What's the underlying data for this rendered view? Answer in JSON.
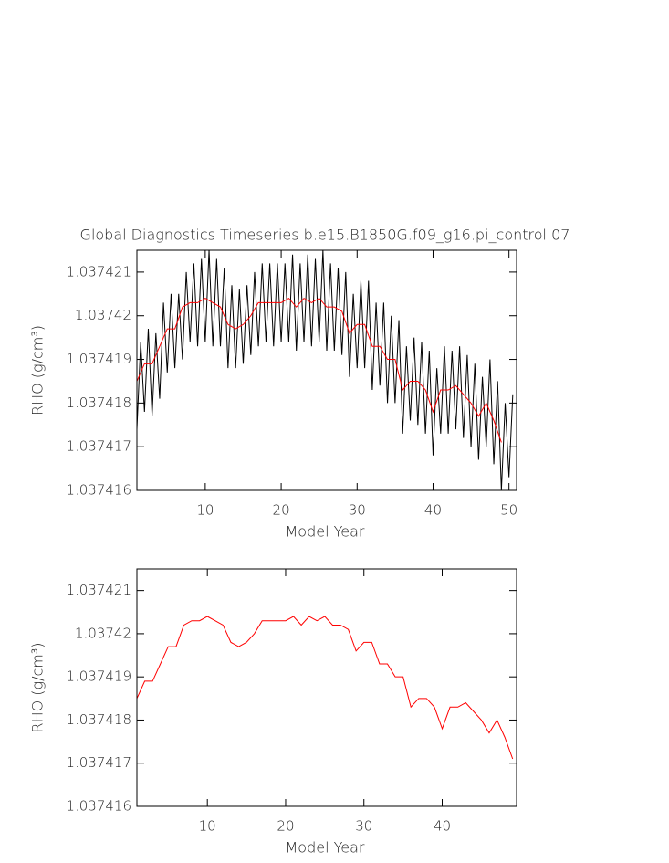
{
  "chart_data": [
    {
      "type": "line",
      "title": "Global Diagnostics Timeseries b.e15.B1850G.f09_g16.pi_control.07",
      "xlabel": "Model Year",
      "ylabel": "RHO (g/cm³)",
      "xlim": [
        1,
        51
      ],
      "xticks": [
        10,
        20,
        30,
        40,
        50
      ],
      "ylim": [
        1.037416,
        1.0374215
      ],
      "yticks": [
        1.037416,
        1.037417,
        1.037418,
        1.037419,
        1.03742,
        1.037421
      ],
      "series": [
        {
          "color": "#000000",
          "x": [
            1,
            1.5,
            2,
            2.5,
            3,
            3.5,
            4,
            4.5,
            5,
            5.5,
            6,
            6.5,
            7,
            7.5,
            8,
            8.5,
            9,
            9.5,
            10,
            10.5,
            11,
            11.5,
            12,
            12.5,
            13,
            13.5,
            14,
            14.5,
            15,
            15.5,
            16,
            16.5,
            17,
            17.5,
            18,
            18.5,
            19,
            19.5,
            20,
            20.5,
            21,
            21.5,
            22,
            22.5,
            23,
            23.5,
            24,
            24.5,
            25,
            25.5,
            26,
            26.5,
            27,
            27.5,
            28,
            28.5,
            29,
            29.5,
            30,
            30.5,
            31,
            31.5,
            32,
            32.5,
            33,
            33.5,
            34,
            34.5,
            35,
            35.5,
            36,
            36.5,
            37,
            37.5,
            38,
            38.5,
            39,
            39.5,
            40,
            40.5,
            41,
            41.5,
            42,
            42.5,
            43,
            43.5,
            44,
            44.5,
            45,
            45.5,
            46,
            46.5,
            47,
            47.5,
            48,
            48.5,
            49,
            49.5,
            50,
            50.5
          ],
          "values": [
            1.0374174,
            1.0374194,
            1.0374178,
            1.0374197,
            1.0374177,
            1.0374196,
            1.0374181,
            1.0374203,
            1.0374187,
            1.0374205,
            1.0374188,
            1.0374205,
            1.037419,
            1.037421,
            1.0374194,
            1.0374212,
            1.0374193,
            1.0374213,
            1.0374194,
            1.0374215,
            1.0374193,
            1.0374213,
            1.0374193,
            1.0374211,
            1.0374188,
            1.0374207,
            1.0374188,
            1.0374206,
            1.0374189,
            1.0374207,
            1.0374191,
            1.037421,
            1.0374193,
            1.0374212,
            1.0374194,
            1.0374212,
            1.0374193,
            1.0374212,
            1.0374194,
            1.0374212,
            1.0374194,
            1.0374214,
            1.0374192,
            1.0374212,
            1.0374194,
            1.0374214,
            1.0374193,
            1.0374213,
            1.0374194,
            1.0374215,
            1.0374192,
            1.0374212,
            1.0374192,
            1.0374211,
            1.0374191,
            1.037421,
            1.0374186,
            1.0374205,
            1.0374188,
            1.0374208,
            1.0374188,
            1.0374208,
            1.0374183,
            1.0374203,
            1.0374184,
            1.0374203,
            1.037418,
            1.03742,
            1.037418,
            1.0374199,
            1.0374173,
            1.0374193,
            1.0374176,
            1.0374195,
            1.0374175,
            1.0374194,
            1.0374173,
            1.0374192,
            1.0374168,
            1.0374188,
            1.0374173,
            1.0374193,
            1.0374173,
            1.0374192,
            1.0374174,
            1.0374193,
            1.0374172,
            1.0374191,
            1.037417,
            1.0374189,
            1.0374167,
            1.0374186,
            1.037417,
            1.037419,
            1.0374166,
            1.0374185,
            1.037416,
            1.037418,
            1.0374163,
            1.0374182
          ]
        },
        {
          "color": "#ff0000",
          "x": [
            1,
            2,
            3,
            4,
            5,
            6,
            7,
            8,
            9,
            10,
            11,
            12,
            13,
            14,
            15,
            16,
            17,
            18,
            19,
            20,
            21,
            22,
            23,
            24,
            25,
            26,
            27,
            28,
            29,
            30,
            31,
            32,
            33,
            34,
            35,
            36,
            37,
            38,
            39,
            40,
            41,
            42,
            43,
            44,
            45,
            46,
            47,
            48,
            49
          ],
          "values": [
            1.0374185,
            1.0374189,
            1.0374189,
            1.0374193,
            1.0374197,
            1.0374197,
            1.0374202,
            1.0374203,
            1.0374203,
            1.0374204,
            1.0374203,
            1.0374202,
            1.0374198,
            1.0374197,
            1.0374198,
            1.03742,
            1.0374203,
            1.0374203,
            1.0374203,
            1.0374203,
            1.0374204,
            1.0374202,
            1.0374204,
            1.0374203,
            1.0374204,
            1.0374202,
            1.0374202,
            1.0374201,
            1.0374196,
            1.0374198,
            1.0374198,
            1.0374193,
            1.0374193,
            1.037419,
            1.037419,
            1.0374183,
            1.0374185,
            1.0374185,
            1.0374183,
            1.0374178,
            1.0374183,
            1.0374183,
            1.0374184,
            1.0374182,
            1.037418,
            1.0374177,
            1.037418,
            1.0374176,
            1.0374171
          ]
        }
      ]
    },
    {
      "type": "line",
      "xlabel": "Model Year",
      "ylabel": "RHO (g/cm³)",
      "xlim": [
        1,
        49.5
      ],
      "xticks": [
        10,
        20,
        30,
        40
      ],
      "ylim": [
        1.037416,
        1.0374215
      ],
      "yticks": [
        1.037416,
        1.037417,
        1.037418,
        1.037419,
        1.03742,
        1.037421
      ],
      "series": [
        {
          "color": "#ff0000",
          "x": [
            1,
            2,
            3,
            4,
            5,
            6,
            7,
            8,
            9,
            10,
            11,
            12,
            13,
            14,
            15,
            16,
            17,
            18,
            19,
            20,
            21,
            22,
            23,
            24,
            25,
            26,
            27,
            28,
            29,
            30,
            31,
            32,
            33,
            34,
            35,
            36,
            37,
            38,
            39,
            40,
            41,
            42,
            43,
            44,
            45,
            46,
            47,
            48,
            49
          ],
          "values": [
            1.0374185,
            1.0374189,
            1.0374189,
            1.0374193,
            1.0374197,
            1.0374197,
            1.0374202,
            1.0374203,
            1.0374203,
            1.0374204,
            1.0374203,
            1.0374202,
            1.0374198,
            1.0374197,
            1.0374198,
            1.03742,
            1.0374203,
            1.0374203,
            1.0374203,
            1.0374203,
            1.0374204,
            1.0374202,
            1.0374204,
            1.0374203,
            1.0374204,
            1.0374202,
            1.0374202,
            1.0374201,
            1.0374196,
            1.0374198,
            1.0374198,
            1.0374193,
            1.0374193,
            1.037419,
            1.037419,
            1.0374183,
            1.0374185,
            1.0374185,
            1.0374183,
            1.0374178,
            1.0374183,
            1.0374183,
            1.0374184,
            1.0374182,
            1.037418,
            1.0374177,
            1.037418,
            1.0374176,
            1.0374171
          ]
        }
      ]
    }
  ]
}
